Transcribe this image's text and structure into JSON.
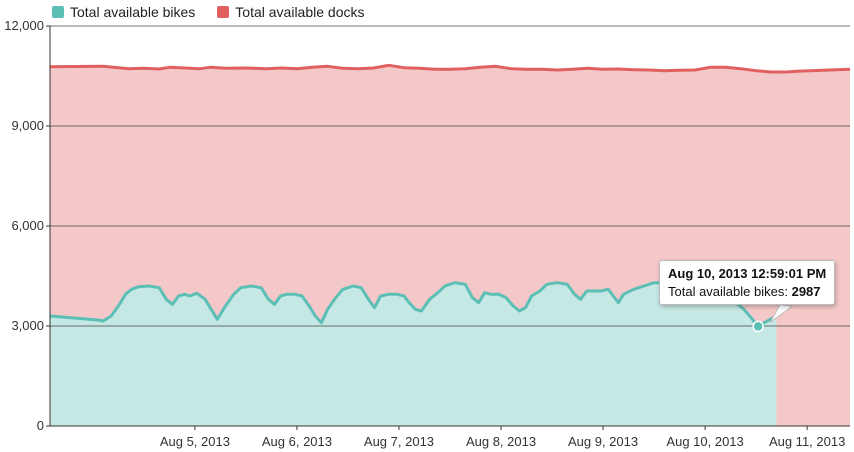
{
  "chart_data": {
    "type": "area",
    "title": "",
    "xlabel": "",
    "ylabel": "",
    "ylim": [
      0,
      12000
    ],
    "yticks": [
      "0",
      "3,000",
      "6,000",
      "9,000",
      "12,000"
    ],
    "ytick_values": [
      0,
      3000,
      6000,
      9000,
      12000
    ],
    "xlim": [
      "Aug 4, 2013 12:00",
      "Aug 11, 2013 23:00"
    ],
    "xticks": [
      {
        "label": "Aug 5, 2013",
        "day": 1
      },
      {
        "label": "Aug 6, 2013",
        "day": 2
      },
      {
        "label": "Aug 7, 2013",
        "day": 3
      },
      {
        "label": "Aug 8, 2013",
        "day": 4
      },
      {
        "label": "Aug 9, 2013",
        "day": 5
      },
      {
        "label": "Aug 10, 2013",
        "day": 6
      },
      {
        "label": "Aug 11, 2013",
        "day": 7
      }
    ],
    "grid": true,
    "legend_position": "top-left",
    "series": [
      {
        "name": "Total available bikes",
        "color": "#5bbfb5",
        "points": [
          [
            0.0,
            3300
          ],
          [
            0.05,
            3180
          ],
          [
            0.1,
            3150
          ],
          [
            0.18,
            3300
          ],
          [
            0.25,
            3600
          ],
          [
            0.32,
            3950
          ],
          [
            0.38,
            4100
          ],
          [
            0.45,
            4180
          ],
          [
            0.55,
            4200
          ],
          [
            0.65,
            4150
          ],
          [
            0.72,
            3800
          ],
          [
            0.78,
            3650
          ],
          [
            0.84,
            3900
          ],
          [
            0.9,
            3950
          ],
          [
            0.95,
            3900
          ],
          [
            1.02,
            3980
          ],
          [
            1.1,
            3800
          ],
          [
            1.16,
            3500
          ],
          [
            1.22,
            3200
          ],
          [
            1.3,
            3600
          ],
          [
            1.38,
            3950
          ],
          [
            1.45,
            4150
          ],
          [
            1.55,
            4200
          ],
          [
            1.65,
            4150
          ],
          [
            1.72,
            3800
          ],
          [
            1.78,
            3650
          ],
          [
            1.84,
            3900
          ],
          [
            1.9,
            3950
          ],
          [
            1.98,
            3950
          ],
          [
            2.05,
            3900
          ],
          [
            2.12,
            3600
          ],
          [
            2.18,
            3300
          ],
          [
            2.24,
            3100
          ],
          [
            2.3,
            3500
          ],
          [
            2.38,
            3850
          ],
          [
            2.45,
            4100
          ],
          [
            2.55,
            4200
          ],
          [
            2.63,
            4150
          ],
          [
            2.7,
            3800
          ],
          [
            2.76,
            3550
          ],
          [
            2.82,
            3900
          ],
          [
            2.9,
            3950
          ],
          [
            2.98,
            3950
          ],
          [
            3.05,
            3900
          ],
          [
            3.1,
            3700
          ],
          [
            3.16,
            3500
          ],
          [
            3.22,
            3450
          ],
          [
            3.3,
            3800
          ],
          [
            3.38,
            4000
          ],
          [
            3.45,
            4200
          ],
          [
            3.55,
            4300
          ],
          [
            3.65,
            4250
          ],
          [
            3.72,
            3850
          ],
          [
            3.78,
            3700
          ],
          [
            3.84,
            4000
          ],
          [
            3.9,
            3950
          ],
          [
            3.98,
            3950
          ],
          [
            4.05,
            3850
          ],
          [
            4.12,
            3600
          ],
          [
            4.18,
            3450
          ],
          [
            4.24,
            3550
          ],
          [
            4.3,
            3900
          ],
          [
            4.38,
            4050
          ],
          [
            4.45,
            4250
          ],
          [
            4.55,
            4300
          ],
          [
            4.65,
            4250
          ],
          [
            4.72,
            3950
          ],
          [
            4.78,
            3800
          ],
          [
            4.84,
            4050
          ],
          [
            4.9,
            4050
          ],
          [
            4.98,
            4050
          ],
          [
            5.05,
            4100
          ],
          [
            5.1,
            3900
          ],
          [
            5.15,
            3700
          ],
          [
            5.2,
            3950
          ],
          [
            5.3,
            4100
          ],
          [
            5.4,
            4200
          ],
          [
            5.5,
            4300
          ],
          [
            5.6,
            4300
          ],
          [
            5.7,
            4200
          ],
          [
            5.76,
            4050
          ],
          [
            5.82,
            4050
          ],
          [
            5.9,
            3950
          ],
          [
            5.98,
            3800
          ],
          [
            6.05,
            3700
          ],
          [
            6.12,
            3850
          ],
          [
            6.2,
            3800
          ],
          [
            6.3,
            3700
          ],
          [
            6.38,
            3500
          ],
          [
            6.45,
            3250
          ],
          [
            6.52,
            2987
          ],
          [
            6.58,
            3100
          ],
          [
            6.64,
            3200
          ],
          [
            6.7,
            3300
          ]
        ]
      },
      {
        "name": "Total available docks",
        "color": "#e06060",
        "points": [
          [
            0.0,
            10780
          ],
          [
            0.1,
            10790
          ],
          [
            0.2,
            10760
          ],
          [
            0.35,
            10720
          ],
          [
            0.5,
            10730
          ],
          [
            0.65,
            10710
          ],
          [
            0.75,
            10760
          ],
          [
            0.9,
            10740
          ],
          [
            1.05,
            10720
          ],
          [
            1.15,
            10760
          ],
          [
            1.3,
            10730
          ],
          [
            1.5,
            10740
          ],
          [
            1.7,
            10720
          ],
          [
            1.85,
            10740
          ],
          [
            2.0,
            10720
          ],
          [
            2.15,
            10760
          ],
          [
            2.3,
            10790
          ],
          [
            2.45,
            10730
          ],
          [
            2.6,
            10720
          ],
          [
            2.75,
            10740
          ],
          [
            2.9,
            10820
          ],
          [
            3.05,
            10750
          ],
          [
            3.2,
            10730
          ],
          [
            3.35,
            10700
          ],
          [
            3.5,
            10700
          ],
          [
            3.65,
            10720
          ],
          [
            3.8,
            10760
          ],
          [
            3.95,
            10790
          ],
          [
            4.1,
            10720
          ],
          [
            4.25,
            10700
          ],
          [
            4.4,
            10700
          ],
          [
            4.55,
            10680
          ],
          [
            4.7,
            10700
          ],
          [
            4.85,
            10730
          ],
          [
            5.0,
            10700
          ],
          [
            5.15,
            10710
          ],
          [
            5.3,
            10690
          ],
          [
            5.45,
            10680
          ],
          [
            5.6,
            10660
          ],
          [
            5.75,
            10670
          ],
          [
            5.9,
            10680
          ],
          [
            6.05,
            10760
          ],
          [
            6.2,
            10760
          ],
          [
            6.35,
            10720
          ],
          [
            6.5,
            10660
          ],
          [
            6.65,
            10620
          ],
          [
            6.8,
            10620
          ],
          [
            6.9,
            10640
          ],
          [
            6.98,
            10700
          ]
        ]
      }
    ],
    "tooltip": {
      "title": "Aug 10, 2013 12:59:01 PM",
      "series_name": "Total available bikes",
      "value": "2987",
      "day": 6.52,
      "y": 2987
    }
  }
}
